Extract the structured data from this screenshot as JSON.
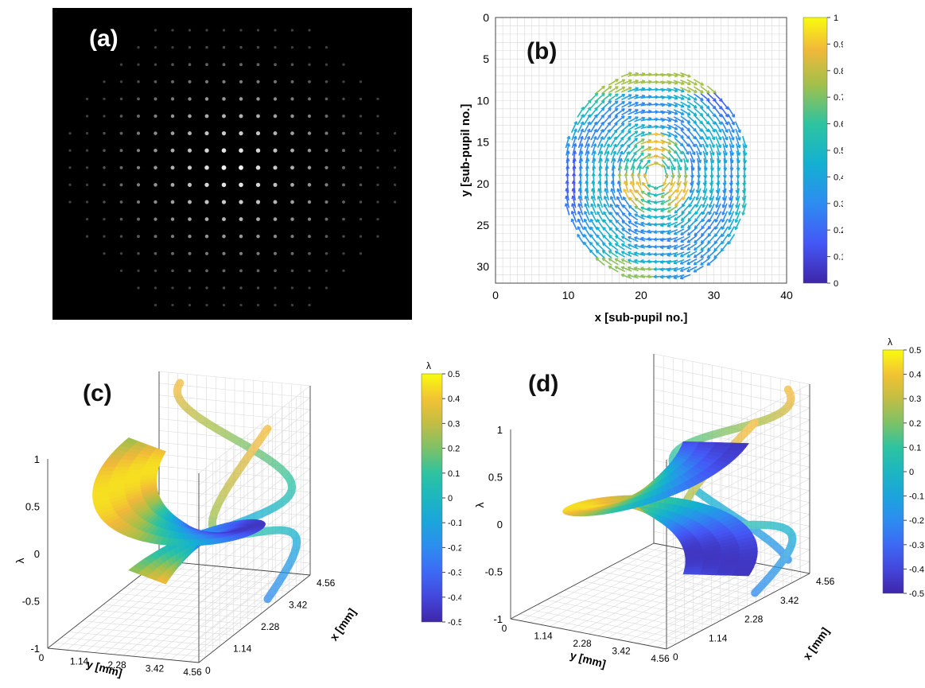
{
  "panels": {
    "a": {
      "letter": "(a)"
    },
    "b": {
      "letter": "(b)"
    },
    "c": {
      "letter": "(c)"
    },
    "d": {
      "letter": "(d)"
    }
  },
  "chart_data": [
    {
      "id": "a",
      "type": "scatter",
      "description_grid": {
        "rows": 17,
        "cols": 20
      },
      "point_color": "#ffffff",
      "background": "#000000"
    },
    {
      "id": "b",
      "type": "scatter",
      "subtype": "vector-field",
      "xlabel": "x [sub-pupil no.]",
      "ylabel": "y [sub-pupil no.]",
      "xlim": [
        0,
        40
      ],
      "ylim": [
        32,
        0
      ],
      "xticks": [
        "0",
        "10",
        "20",
        "30",
        "40"
      ],
      "yticks": [
        "0",
        "5",
        "10",
        "15",
        "20",
        "25",
        "30"
      ],
      "grid": true,
      "colorbar": {
        "min": 0,
        "max": 1,
        "ticks": [
          "0",
          "0.1",
          "0.2",
          "0.3",
          "0.4",
          "0.5",
          "0.6",
          "0.7",
          "0.8",
          "0.9",
          "1"
        ]
      },
      "vortex_center": [
        22,
        19
      ],
      "vortex_radius": 13
    },
    {
      "id": "c",
      "type": "area",
      "subtype": "3d-surface",
      "zlabel": "λ",
      "ylabel": "y [mm]",
      "xlabel": "x [mm]",
      "zticks": [
        "-1",
        "-0.5",
        "0",
        "0.5",
        "1"
      ],
      "yticks": [
        "0",
        "1.14",
        "2.28",
        "3.42",
        "4.56"
      ],
      "xticks": [
        "0",
        "1.14",
        "2.28",
        "3.42",
        "4.56"
      ],
      "colorbar": {
        "label": "λ",
        "min": -0.5,
        "max": 0.5,
        "ticks": [
          "0.5",
          "0.4",
          "0.3",
          "0.2",
          "0.1",
          "0",
          "-0.1",
          "-0.2",
          "-0.3",
          "-0.4",
          "-0.5"
        ]
      },
      "helix_turns": 1,
      "handedness": "left"
    },
    {
      "id": "d",
      "type": "area",
      "subtype": "3d-surface",
      "zlabel": "λ",
      "ylabel": "y [mm]",
      "xlabel": "x [mm]",
      "zticks": [
        "-1",
        "-0.5",
        "0",
        "0.5",
        "1"
      ],
      "yticks": [
        "0",
        "1.14",
        "2.28",
        "3.42",
        "4.56"
      ],
      "xticks": [
        "0",
        "1.14",
        "2.28",
        "3.42",
        "4.56"
      ],
      "colorbar": {
        "label": "λ",
        "min": -0.5,
        "max": 0.5,
        "ticks": [
          "0.5",
          "0.4",
          "0.3",
          "0.2",
          "0.1",
          "0",
          "-0.1",
          "-0.2",
          "-0.3",
          "-0.4",
          "-0.5"
        ]
      },
      "helix_turns": 1,
      "handedness": "right"
    }
  ]
}
